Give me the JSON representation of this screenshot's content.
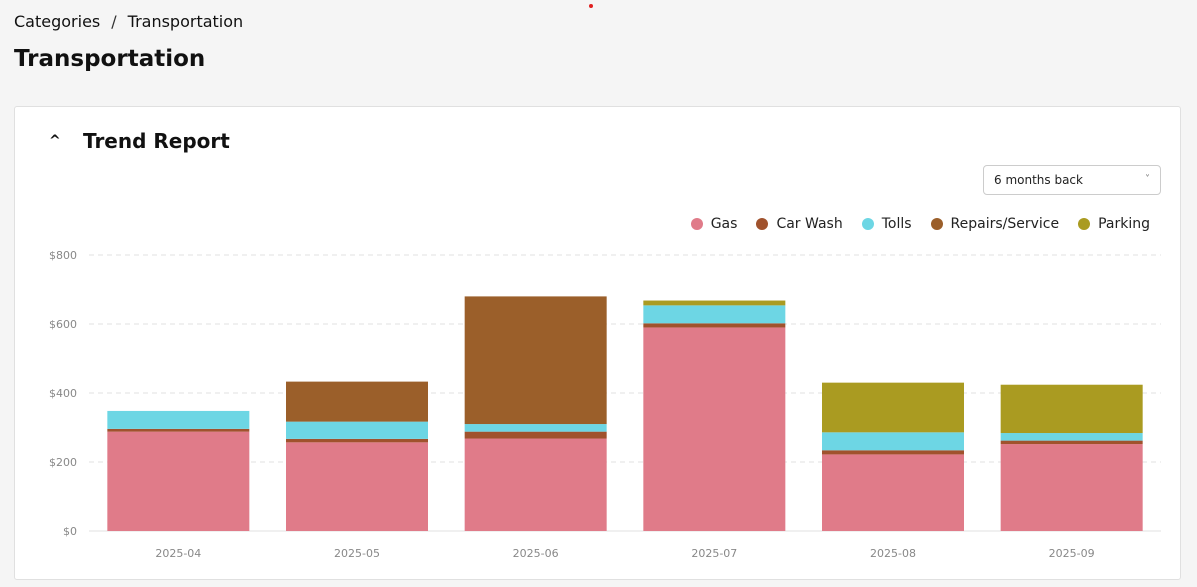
{
  "breadcrumb": {
    "parent": "Categories",
    "separator": "/",
    "current": "Transportation"
  },
  "page_title": "Transportation",
  "card": {
    "toggle_icon": "^",
    "title": "Trend Report",
    "period_select": {
      "value": "6 months back"
    }
  },
  "chart_data": {
    "type": "bar",
    "stacked": true,
    "categories": [
      "2025-04",
      "2025-05",
      "2025-06",
      "2025-07",
      "2025-08",
      "2025-09"
    ],
    "series": [
      {
        "name": "Gas",
        "color": "#e07b89",
        "values": [
          288,
          257,
          268,
          590,
          222,
          252
        ]
      },
      {
        "name": "Car Wash",
        "color": "#a0522d",
        "values": [
          8,
          10,
          20,
          12,
          12,
          10
        ]
      },
      {
        "name": "Tolls",
        "color": "#6dd6e4",
        "values": [
          52,
          50,
          22,
          52,
          52,
          22
        ]
      },
      {
        "name": "Repairs/Service",
        "color": "#9b5f2a",
        "values": [
          0,
          116,
          370,
          0,
          0,
          0
        ]
      },
      {
        "name": "Parking",
        "color": "#aa9b21",
        "values": [
          0,
          0,
          0,
          14,
          144,
          140
        ]
      }
    ],
    "y_ticks": [
      "$0",
      "$200",
      "$400",
      "$600",
      "$800"
    ],
    "ylim": [
      0,
      800
    ],
    "grid": true,
    "legend_position": "top-right"
  }
}
